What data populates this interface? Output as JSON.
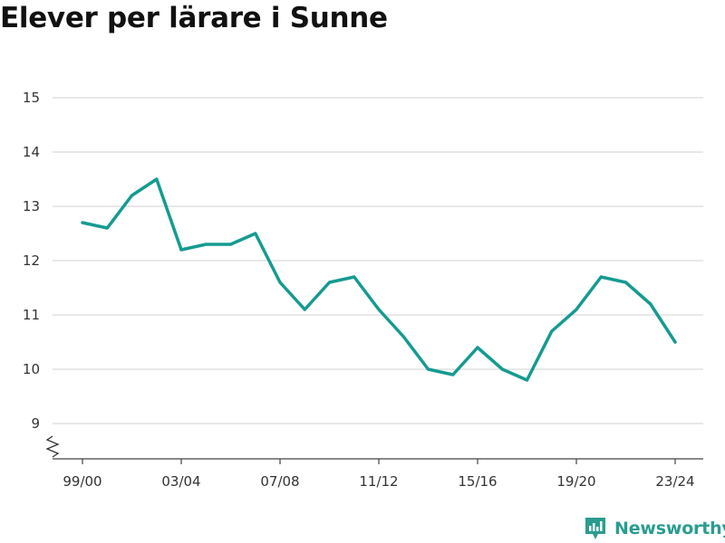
{
  "title": "Elever per lärare i Sunne",
  "brand": {
    "name": "Newsworthy",
    "color": "#2a9d8f"
  },
  "colors": {
    "line": "#159b91",
    "grid": "#d9d9d9",
    "axis": "#444444"
  },
  "chart_data": {
    "type": "line",
    "title": "Elever per lärare i Sunne",
    "xlabel": "",
    "ylabel": "",
    "ylim": [
      9,
      15
    ],
    "yticks": [
      9,
      10,
      11,
      12,
      13,
      14,
      15
    ],
    "y_axis_break": true,
    "grid": true,
    "x": [
      "99/00",
      "00/01",
      "01/02",
      "02/03",
      "03/04",
      "04/05",
      "05/06",
      "06/07",
      "07/08",
      "08/09",
      "09/10",
      "10/11",
      "11/12",
      "12/13",
      "13/14",
      "14/15",
      "15/16",
      "16/17",
      "17/18",
      "18/19",
      "19/20",
      "20/21",
      "21/22",
      "22/23",
      "23/24"
    ],
    "xticks": [
      "99/00",
      "03/04",
      "07/08",
      "11/12",
      "15/16",
      "19/20",
      "23/24"
    ],
    "series": [
      {
        "values": [
          12.7,
          12.6,
          13.2,
          13.5,
          12.2,
          12.3,
          12.3,
          12.5,
          11.6,
          11.1,
          11.6,
          11.7,
          11.1,
          10.6,
          10.0,
          9.9,
          10.4,
          10.0,
          9.8,
          10.7,
          11.1,
          11.7,
          11.6,
          11.2,
          10.5
        ]
      }
    ]
  }
}
